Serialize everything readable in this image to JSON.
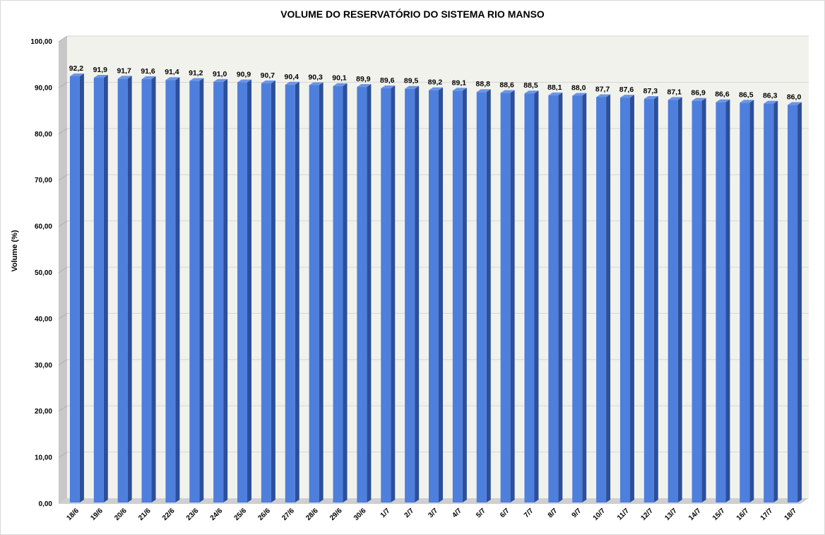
{
  "chart_data": {
    "type": "bar",
    "title": "VOLUME DO RESERVATÓRIO DO SISTEMA RIO MANSO",
    "xlabel": "",
    "ylabel": "Volume (%)",
    "ylim": [
      0,
      100
    ],
    "yticks": [
      "0,00",
      "10,00",
      "20,00",
      "30,00",
      "40,00",
      "50,00",
      "60,00",
      "70,00",
      "80,00",
      "90,00",
      "100,00"
    ],
    "grid": true,
    "legend": "none",
    "categories": [
      "18/6",
      "19/6",
      "20/6",
      "21/6",
      "22/6",
      "23/6",
      "24/6",
      "25/6",
      "26/6",
      "27/6",
      "28/6",
      "29/6",
      "30/6",
      "1/7",
      "2/7",
      "3/7",
      "4/7",
      "5/7",
      "6/7",
      "7/7",
      "8/7",
      "9/7",
      "10/7",
      "11/7",
      "12/7",
      "13/7",
      "14/7",
      "15/7",
      "16/7",
      "17/7",
      "18/7"
    ],
    "values": [
      92.2,
      91.9,
      91.7,
      91.6,
      91.4,
      91.2,
      91.0,
      90.9,
      90.7,
      90.4,
      90.3,
      90.1,
      89.9,
      89.6,
      89.5,
      89.2,
      89.1,
      88.8,
      88.6,
      88.5,
      88.1,
      88.0,
      87.7,
      87.6,
      87.3,
      87.1,
      86.9,
      86.6,
      86.5,
      86.3,
      86.0
    ],
    "data_labels": [
      "92,2",
      "91,9",
      "91,7",
      "91,6",
      "91,4",
      "91,2",
      "91,0",
      "90,9",
      "90,7",
      "90,4",
      "90,3",
      "90,1",
      "89,9",
      "89,6",
      "89,5",
      "89,2",
      "89,1",
      "88,8",
      "88,6",
      "88,5",
      "88,1",
      "88,0",
      "87,7",
      "87,6",
      "87,3",
      "87,1",
      "86,9",
      "86,6",
      "86,5",
      "86,3",
      "86,0"
    ],
    "colors": {
      "bar_front": "#4f7fdc",
      "bar_side": "#2c4f9a",
      "bar_top": "#6b95e6",
      "wall": "#f2f2ed",
      "wall_side": "#c8c8c8",
      "floor": "#cfcfcf",
      "gridline": "#d4d4d4"
    }
  }
}
